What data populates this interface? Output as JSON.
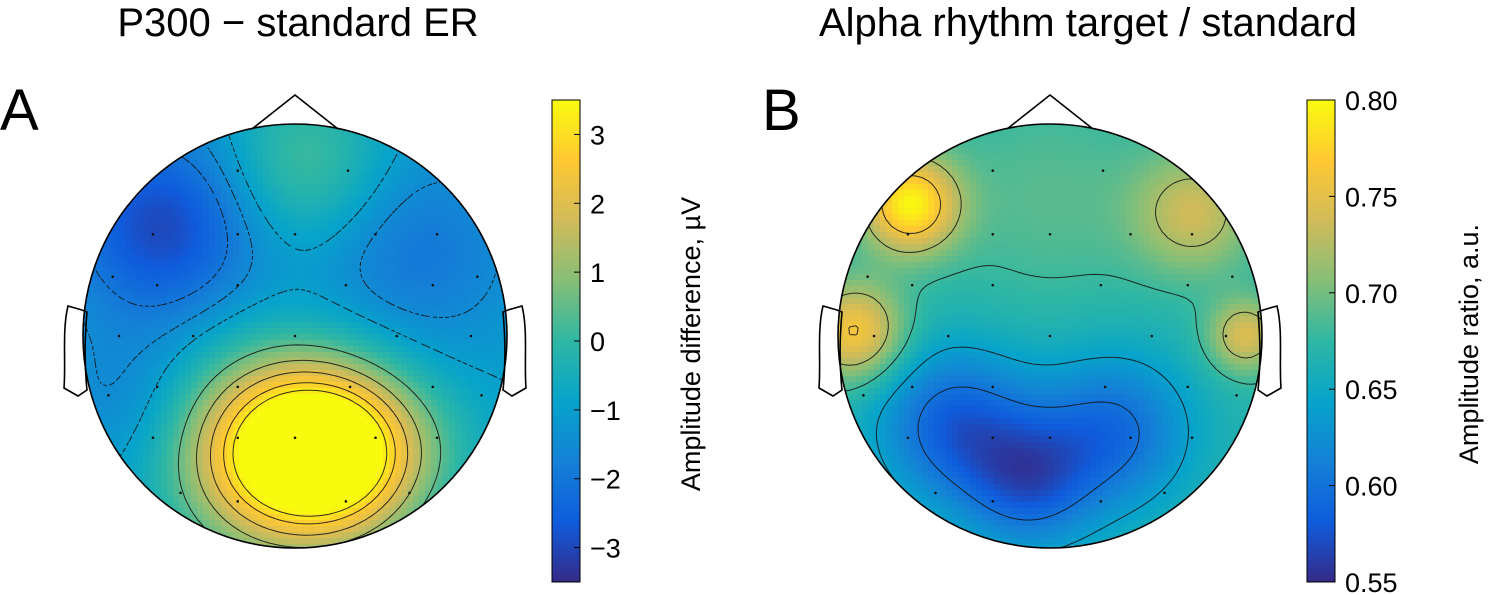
{
  "chart_data": [
    {
      "type": "heatmap",
      "panel": "A",
      "title": "P300 − standard ER",
      "colorbar": {
        "label": "Amplitude difference, µV",
        "range": [
          -3.5,
          3.5
        ],
        "ticks": [
          "−3",
          "−2",
          "−1",
          "0",
          "1",
          "2",
          "3"
        ],
        "tick_values": [
          -3,
          -2,
          -1,
          0,
          1,
          2,
          3
        ]
      },
      "blobs": [
        {
          "x": -0.62,
          "y": 0.52,
          "value": -3.0,
          "sigma": 0.32
        },
        {
          "x": -0.1,
          "y": -0.55,
          "value": 3.4,
          "sigma": 0.32
        },
        {
          "x": 0.25,
          "y": -0.55,
          "value": 2.8,
          "sigma": 0.28
        },
        {
          "x": 0.05,
          "y": 0.8,
          "value": 0.4,
          "sigma": 0.28
        },
        {
          "x": 0.55,
          "y": 0.4,
          "value": -2.0,
          "sigma": 0.35
        },
        {
          "x": 0.75,
          "y": -0.5,
          "value": -0.8,
          "sigma": 0.2
        },
        {
          "x": -0.8,
          "y": -0.3,
          "value": -1.6,
          "sigma": 0.25
        }
      ],
      "base_value": -1.0,
      "contour_levels": [
        -2,
        -1.5,
        -1,
        0.5,
        1.3,
        2.0,
        2.7,
        3.2
      ]
    },
    {
      "type": "heatmap",
      "panel": "B",
      "title": "Alpha rhythm target / standard",
      "colorbar": {
        "label": "Amplitude ratio, a.u.",
        "range": [
          0.55,
          0.8
        ],
        "ticks": [
          "0.80",
          "0.75",
          "0.70",
          "0.65",
          "0.60",
          "0.55"
        ],
        "tick_values": [
          0.8,
          0.75,
          0.7,
          0.65,
          0.6,
          0.55
        ]
      },
      "blobs": [
        {
          "x": -0.66,
          "y": 0.62,
          "value": 0.795,
          "sigma": 0.16
        },
        {
          "x": -0.92,
          "y": 0.02,
          "value": 0.765,
          "sigma": 0.16
        },
        {
          "x": 0.68,
          "y": 0.58,
          "value": 0.735,
          "sigma": 0.2
        },
        {
          "x": 0.92,
          "y": 0.0,
          "value": 0.745,
          "sigma": 0.12
        },
        {
          "x": -0.45,
          "y": -0.42,
          "value": 0.585,
          "sigma": 0.26
        },
        {
          "x": 0.3,
          "y": -0.45,
          "value": 0.595,
          "sigma": 0.26
        },
        {
          "x": -0.1,
          "y": -0.7,
          "value": 0.595,
          "sigma": 0.22
        },
        {
          "x": 0.0,
          "y": 0.65,
          "value": 0.69,
          "sigma": 0.35
        }
      ],
      "base_value": 0.67,
      "contour_levels": [
        0.6,
        0.64,
        0.68,
        0.72,
        0.76
      ]
    }
  ],
  "colormap": [
    "#352a87",
    "#0f5cdd",
    "#1481d6",
    "#06a4ca",
    "#2eb7a4",
    "#87bf77",
    "#d1bb59",
    "#fec832",
    "#f9fb0e"
  ]
}
